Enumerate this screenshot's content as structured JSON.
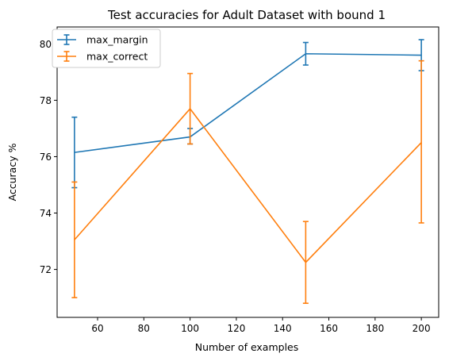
{
  "chart_data": {
    "type": "line",
    "title": "Test accuracies for Adult Dataset with bound 1",
    "xlabel": "Number of examples",
    "ylabel": "Accuracy %",
    "xlim": [
      42.5,
      207.5
    ],
    "ylim": [
      70.3,
      80.6
    ],
    "xticks": [
      60,
      80,
      100,
      120,
      140,
      160,
      180,
      200
    ],
    "yticks": [
      72,
      74,
      76,
      78,
      80
    ],
    "x": [
      50,
      100,
      150,
      200
    ],
    "grid": false,
    "legend_position": "top-left",
    "series": [
      {
        "name": "max_margin",
        "color": "#1f77b4",
        "values": [
          76.15,
          76.7,
          79.65,
          79.6
        ],
        "err_low": [
          74.9,
          76.45,
          79.25,
          79.05
        ],
        "err_high": [
          77.4,
          77.0,
          80.05,
          80.15
        ]
      },
      {
        "name": "max_correct",
        "color": "#ff7f0e",
        "values": [
          73.05,
          77.7,
          72.25,
          76.5
        ],
        "err_low": [
          71.0,
          76.45,
          70.8,
          73.65
        ],
        "err_high": [
          75.1,
          78.95,
          73.7,
          79.4
        ]
      }
    ]
  }
}
